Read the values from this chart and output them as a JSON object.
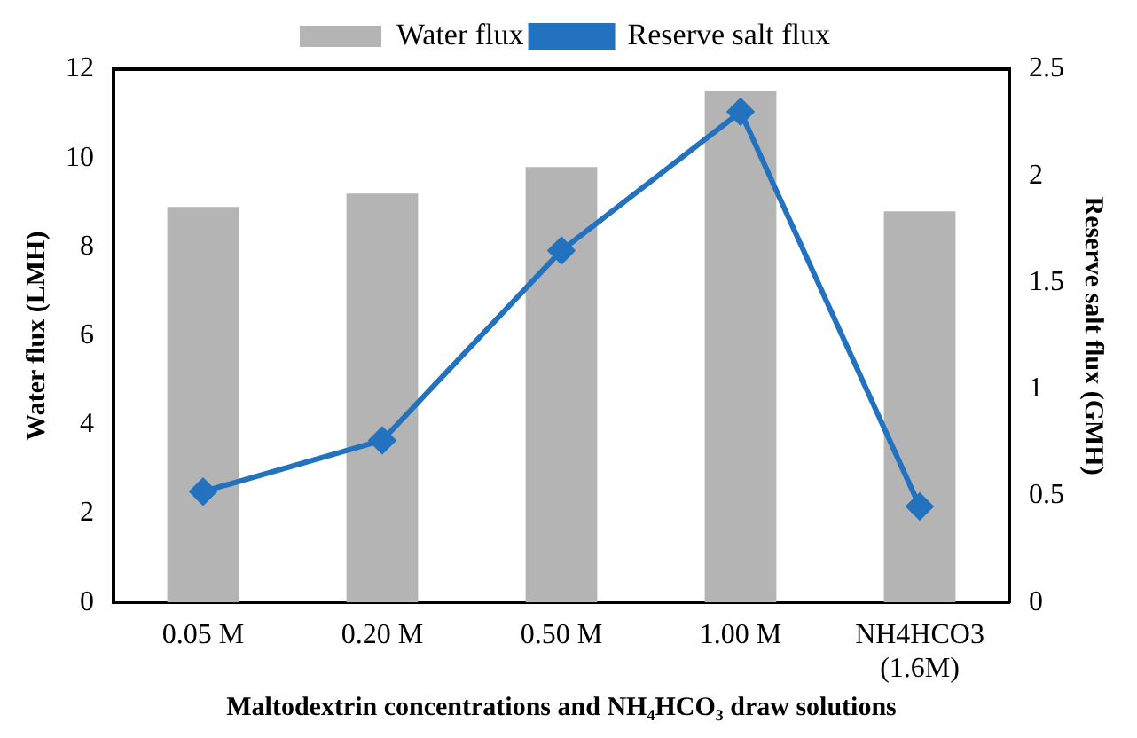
{
  "chart_data": {
    "type": "bar",
    "xlabel": "Maltodextrin concentrations and NH₄HCO₃ draw solutions",
    "ylabel": "Water flux (LMH)",
    "y2label": "Reserve salt flux (GMH)",
    "categories": [
      "0.05 M",
      "0.20 M",
      "0.50 M",
      "1.00 M",
      "NH4HCO3 (1.6M)"
    ],
    "series": [
      {
        "name": "Water flux",
        "color": "#b4b4b4",
        "values": [
          8.9,
          9.2,
          9.8,
          11.5,
          8.8
        ]
      },
      {
        "name": "Reserve salt flux",
        "type": "line",
        "axis": "y2",
        "color": "#2372c0",
        "values": [
          0.52,
          0.76,
          1.65,
          2.3,
          0.45
        ]
      }
    ],
    "ylim": [
      0,
      12
    ],
    "yticks": [
      0,
      2,
      4,
      6,
      8,
      10,
      12
    ],
    "y2lim": [
      0,
      2.5
    ],
    "y2ticks": [
      0,
      0.5,
      1,
      1.5,
      2,
      2.5
    ],
    "grid": false,
    "legend": "top",
    "marker": "diamond",
    "line_style": "solid"
  }
}
